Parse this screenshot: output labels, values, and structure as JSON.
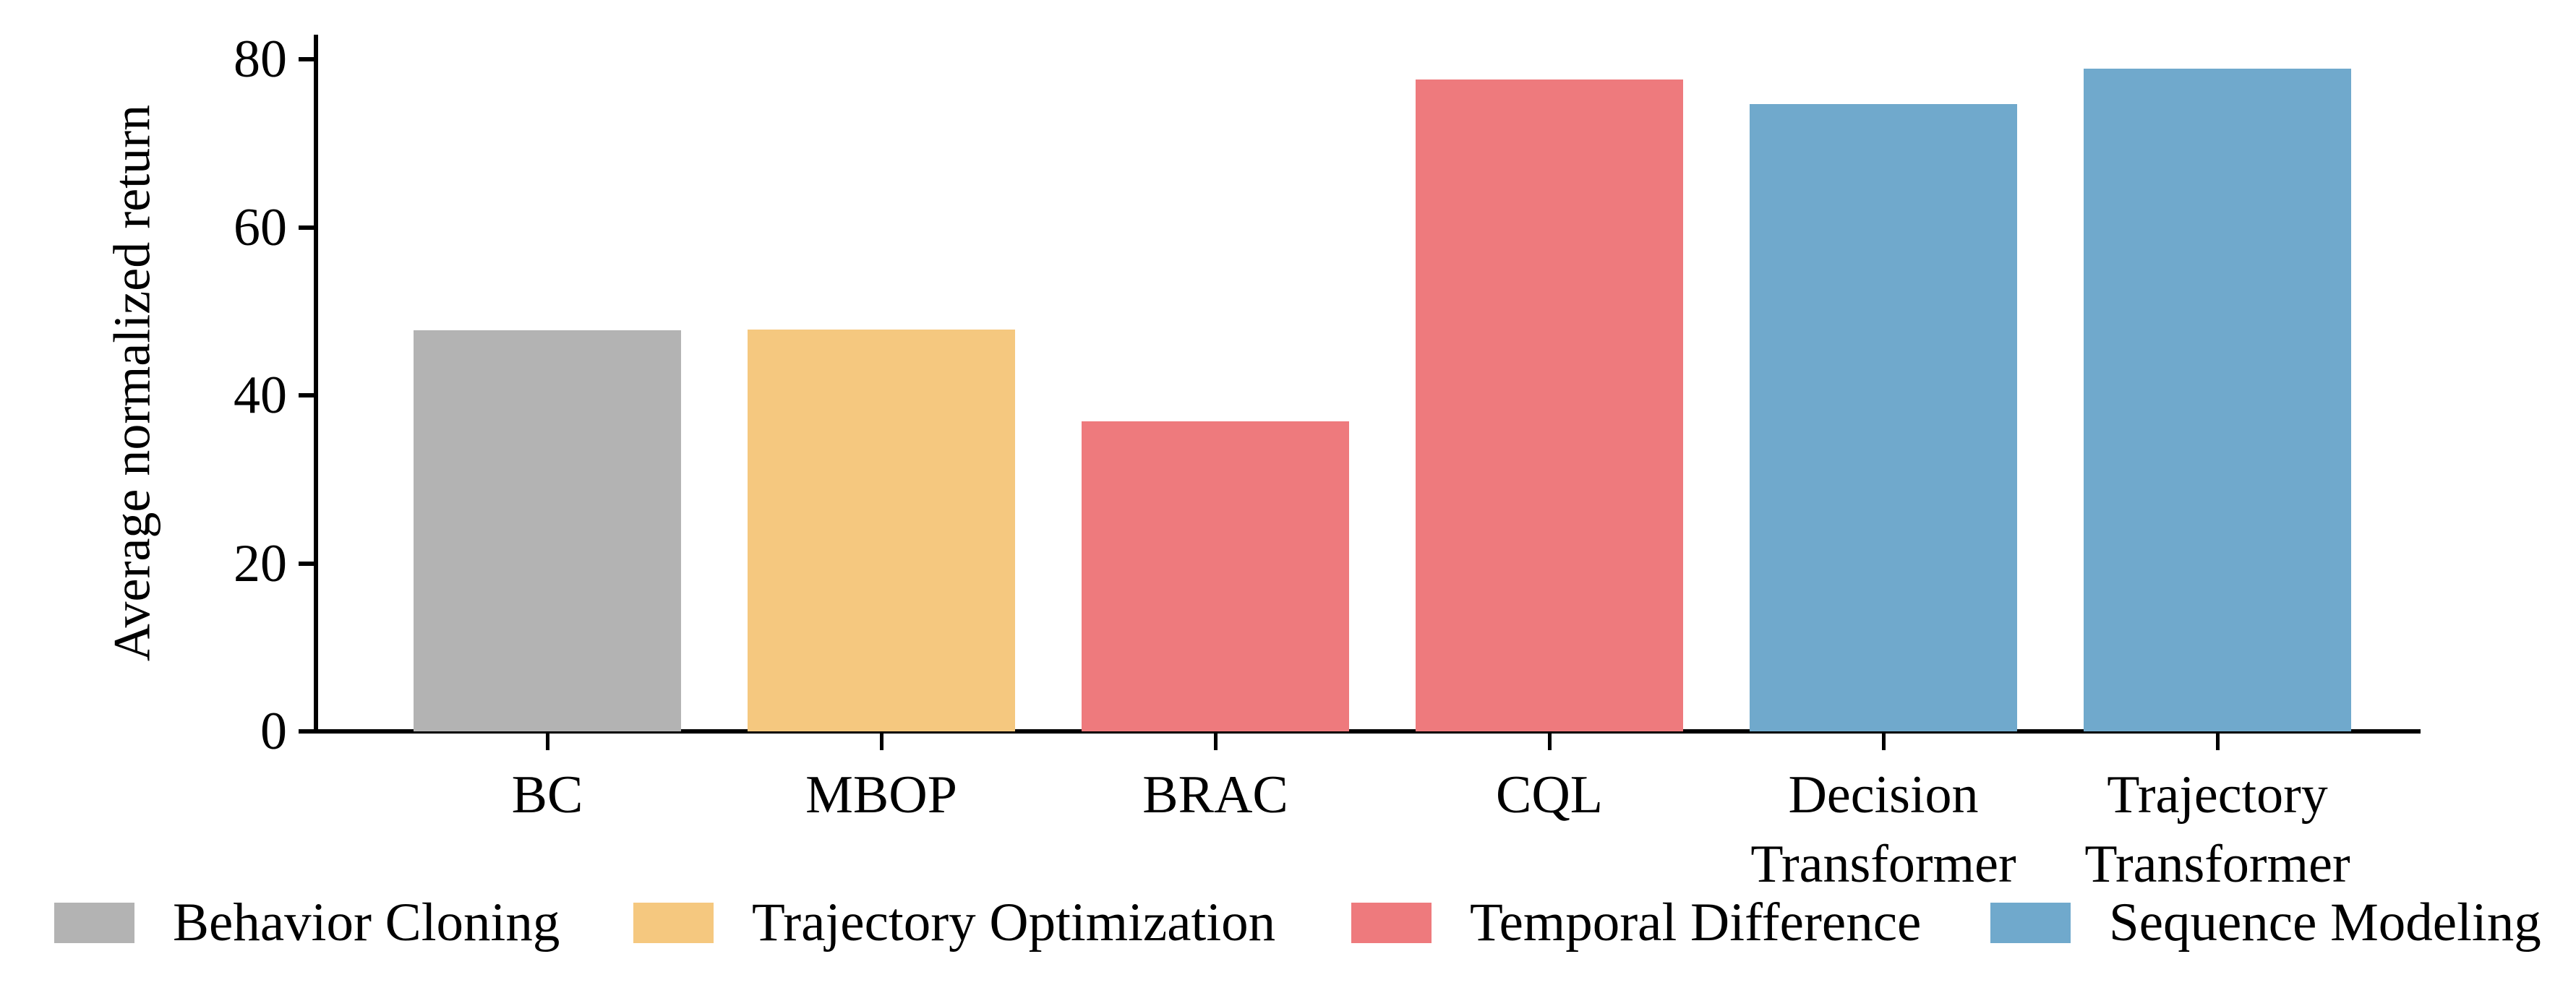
{
  "figure": {
    "background": "#ffffff",
    "text_color": "#000000",
    "axis_color": "#000000"
  },
  "chart_data": {
    "type": "bar",
    "title": "",
    "xlabel": "",
    "ylabel": "Average normalized return",
    "categories": [
      "BC",
      "MBOP",
      "BRAC",
      "CQL",
      "Decision\nTransformer",
      "Trajectory\nTransformer"
    ],
    "values": [
      47.7,
      47.8,
      36.9,
      77.6,
      74.7,
      78.9
    ],
    "bar_color_keys": [
      "gray",
      "orange",
      "red",
      "red",
      "blue",
      "blue"
    ],
    "palette": {
      "gray": "#b3b3b3",
      "orange": "#f5c87f",
      "red": "#ee7a7d",
      "blue": "#70a9cc"
    },
    "yticks": [
      0,
      20,
      40,
      60,
      80
    ],
    "ytick_labels": [
      "0",
      "20",
      "40",
      "60",
      "80"
    ],
    "ylim": [
      0,
      83
    ],
    "grid": false,
    "legend": {
      "position": "bottom",
      "entries": [
        {
          "label": "Behavior Cloning",
          "color_key": "gray"
        },
        {
          "label": "Trajectory Optimization",
          "color_key": "orange"
        },
        {
          "label": "Temporal Difference",
          "color_key": "red"
        },
        {
          "label": "Sequence Modeling",
          "color_key": "blue"
        }
      ]
    }
  }
}
